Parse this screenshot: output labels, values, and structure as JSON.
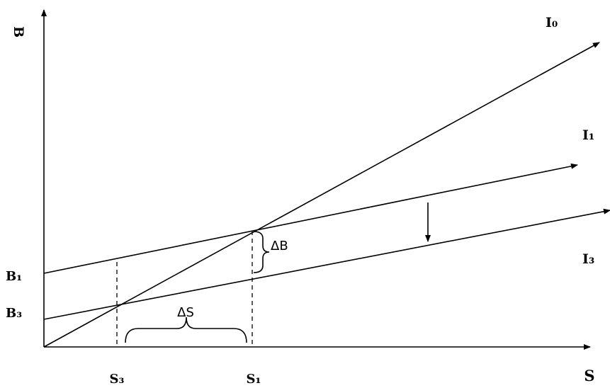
{
  "axes": {
    "y_label": "B",
    "x_label": "S"
  },
  "lines": {
    "i0": "I₀",
    "i1": "I₁",
    "i3": "I₃"
  },
  "y_ticks": {
    "b1": "B₁",
    "b3": "B₃"
  },
  "x_ticks": {
    "s3": "S₃",
    "s1": "S₁"
  },
  "annotations": {
    "delta_b": "ΔB",
    "delta_s": "ΔS"
  }
}
